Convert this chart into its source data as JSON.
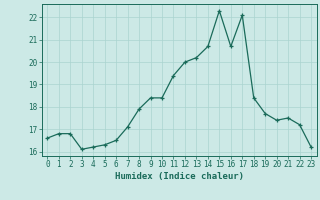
{
  "x": [
    0,
    1,
    2,
    3,
    4,
    5,
    6,
    7,
    8,
    9,
    10,
    11,
    12,
    13,
    14,
    15,
    16,
    17,
    18,
    19,
    20,
    21,
    22,
    23
  ],
  "y": [
    16.6,
    16.8,
    16.8,
    16.1,
    16.2,
    16.3,
    16.5,
    17.1,
    17.9,
    18.4,
    18.4,
    19.4,
    20.0,
    20.2,
    20.7,
    22.3,
    20.7,
    22.1,
    18.4,
    17.7,
    17.4,
    17.5,
    17.2,
    16.2
  ],
  "line_color": "#1a6b5a",
  "marker": "+",
  "markersize": 3.5,
  "linewidth": 0.9,
  "xlabel": "Humidex (Indice chaleur)",
  "xlim": [
    -0.5,
    23.5
  ],
  "ylim": [
    15.8,
    22.6
  ],
  "yticks": [
    16,
    17,
    18,
    19,
    20,
    21,
    22
  ],
  "xticks": [
    0,
    1,
    2,
    3,
    4,
    5,
    6,
    7,
    8,
    9,
    10,
    11,
    12,
    13,
    14,
    15,
    16,
    17,
    18,
    19,
    20,
    21,
    22,
    23
  ],
  "bg_color": "#cce9e6",
  "grid_color": "#aad4d0",
  "tick_color": "#1a6b5a",
  "label_color": "#1a6b5a",
  "tick_fontsize": 5.5,
  "label_fontsize": 6.5
}
